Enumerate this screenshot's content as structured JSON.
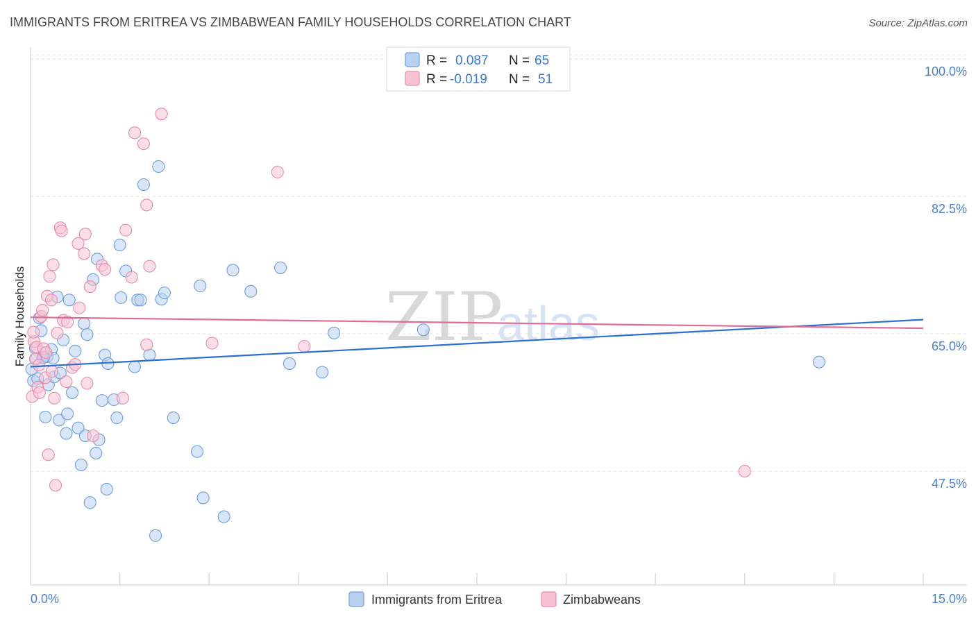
{
  "title": "IMMIGRANTS FROM ERITREA VS ZIMBABWEAN FAMILY HOUSEHOLDS CORRELATION CHART",
  "source": "Source: ZipAtlas.com",
  "watermark": {
    "zip": "ZIP",
    "atlas": "atlas"
  },
  "colors": {
    "blue_fill": "#b9d1f1",
    "blue_stroke": "#6d9de0",
    "blue_line": "#2a6fd0",
    "pink_fill": "#f7c3d3",
    "pink_stroke": "#e88aa9",
    "pink_line": "#e06a94",
    "grid": "#e3e3e3",
    "axis_text": "#4a7fd4"
  },
  "legend": {
    "rows": [
      {
        "r_label": "R =",
        "r_value": "0.087",
        "n_label": "N =",
        "n_value": "65",
        "color": "blue"
      },
      {
        "r_label": "R =",
        "r_value": "-0.019",
        "n_label": "N =",
        "n_value": "51",
        "color": "pink"
      }
    ]
  },
  "bottom_legend": [
    {
      "label": "Immigrants from Eritrea",
      "color": "blue"
    },
    {
      "label": "Zimbabweans",
      "color": "pink"
    }
  ],
  "chart_data": {
    "type": "scatter",
    "title": "IMMIGRANTS FROM ERITREA VS ZIMBABWEAN FAMILY HOUSEHOLDS CORRELATION CHART",
    "xlabel": "",
    "ylabel": "Family Households",
    "xlim": [
      0,
      15
    ],
    "ylim": [
      33,
      101.5
    ],
    "x_tick_labels": [
      "0.0%",
      "15.0%"
    ],
    "y_ticks": [
      47.5,
      65.0,
      82.5,
      100.0
    ],
    "y_tick_labels": [
      "47.5%",
      "65.0%",
      "82.5%",
      "100.0%"
    ],
    "series": [
      {
        "name": "Immigrants from Eritrea",
        "color": "blue",
        "trend": {
          "x0": 0,
          "y0": 60.8,
          "x1": 15,
          "y1": 66.8
        },
        "points": [
          [
            0.05,
            59.0
          ],
          [
            0.1,
            61.8
          ],
          [
            0.12,
            59.3
          ],
          [
            0.15,
            67.0
          ],
          [
            0.18,
            65.4
          ],
          [
            0.2,
            61.9
          ],
          [
            0.25,
            54.4
          ],
          [
            0.28,
            62.1
          ],
          [
            0.3,
            58.5
          ],
          [
            0.35,
            63.0
          ],
          [
            0.38,
            61.9
          ],
          [
            0.4,
            59.5
          ],
          [
            0.45,
            69.7
          ],
          [
            0.48,
            54.0
          ],
          [
            0.5,
            60.0
          ],
          [
            0.55,
            64.2
          ],
          [
            0.6,
            52.3
          ],
          [
            0.62,
            54.8
          ],
          [
            0.65,
            69.3
          ],
          [
            0.7,
            57.5
          ],
          [
            0.75,
            62.8
          ],
          [
            0.8,
            53.0
          ],
          [
            0.85,
            48.3
          ],
          [
            0.9,
            66.3
          ],
          [
            0.92,
            52.0
          ],
          [
            0.95,
            64.9
          ],
          [
            1.0,
            43.5
          ],
          [
            1.05,
            71.9
          ],
          [
            1.1,
            49.8
          ],
          [
            1.12,
            74.5
          ],
          [
            1.15,
            51.5
          ],
          [
            1.2,
            56.5
          ],
          [
            1.25,
            62.3
          ],
          [
            1.28,
            45.2
          ],
          [
            1.3,
            61.2
          ],
          [
            1.4,
            56.6
          ],
          [
            1.45,
            54.3
          ],
          [
            1.5,
            76.3
          ],
          [
            1.52,
            69.6
          ],
          [
            1.6,
            73.0
          ],
          [
            1.75,
            60.8
          ],
          [
            1.8,
            69.3
          ],
          [
            1.85,
            69.3
          ],
          [
            1.9,
            84.0
          ],
          [
            2.0,
            62.3
          ],
          [
            2.1,
            39.3
          ],
          [
            2.15,
            86.3
          ],
          [
            2.2,
            69.4
          ],
          [
            2.25,
            70.2
          ],
          [
            2.4,
            54.3
          ],
          [
            2.8,
            50.0
          ],
          [
            2.85,
            71.1
          ],
          [
            2.9,
            44.1
          ],
          [
            3.25,
            41.7
          ],
          [
            3.4,
            73.1
          ],
          [
            3.7,
            70.4
          ],
          [
            4.2,
            73.4
          ],
          [
            4.35,
            61.2
          ],
          [
            4.9,
            60.1
          ],
          [
            5.1,
            65.1
          ],
          [
            6.6,
            65.5
          ],
          [
            13.25,
            61.4
          ],
          [
            0.02,
            60.5
          ],
          [
            0.08,
            63.2
          ],
          [
            0.22,
            62.0
          ]
        ]
      },
      {
        "name": "Zimbabweans",
        "color": "pink",
        "trend": {
          "x0": 0,
          "y0": 67.1,
          "x1": 15,
          "y1": 65.7
        },
        "points": [
          [
            0.03,
            57.0
          ],
          [
            0.06,
            64.0
          ],
          [
            0.08,
            61.8
          ],
          [
            0.1,
            63.3
          ],
          [
            0.12,
            58.2
          ],
          [
            0.15,
            57.5
          ],
          [
            0.18,
            67.2
          ],
          [
            0.2,
            68.0
          ],
          [
            0.22,
            63.1
          ],
          [
            0.25,
            59.4
          ],
          [
            0.28,
            69.8
          ],
          [
            0.3,
            49.6
          ],
          [
            0.32,
            72.3
          ],
          [
            0.35,
            69.3
          ],
          [
            0.38,
            73.8
          ],
          [
            0.4,
            56.8
          ],
          [
            0.42,
            45.7
          ],
          [
            0.45,
            65.1
          ],
          [
            0.5,
            78.5
          ],
          [
            0.52,
            78.1
          ],
          [
            0.55,
            66.7
          ],
          [
            0.6,
            58.9
          ],
          [
            0.62,
            66.5
          ],
          [
            0.7,
            60.7
          ],
          [
            0.75,
            61.1
          ],
          [
            0.8,
            76.5
          ],
          [
            0.82,
            68.3
          ],
          [
            0.9,
            75.2
          ],
          [
            0.92,
            77.7
          ],
          [
            0.95,
            58.7
          ],
          [
            1.0,
            71.0
          ],
          [
            1.05,
            52.0
          ],
          [
            1.2,
            73.7
          ],
          [
            1.25,
            73.2
          ],
          [
            1.55,
            56.8
          ],
          [
            1.6,
            78.2
          ],
          [
            1.7,
            72.2
          ],
          [
            1.75,
            90.6
          ],
          [
            1.9,
            89.2
          ],
          [
            1.95,
            81.4
          ],
          [
            1.95,
            63.6
          ],
          [
            2.0,
            73.6
          ],
          [
            2.2,
            93.0
          ],
          [
            3.05,
            63.8
          ],
          [
            4.15,
            85.6
          ],
          [
            4.6,
            63.4
          ],
          [
            12.0,
            47.5
          ],
          [
            0.05,
            65.2
          ],
          [
            0.14,
            61.0
          ],
          [
            0.26,
            62.6
          ],
          [
            0.36,
            60.2
          ]
        ]
      }
    ]
  }
}
